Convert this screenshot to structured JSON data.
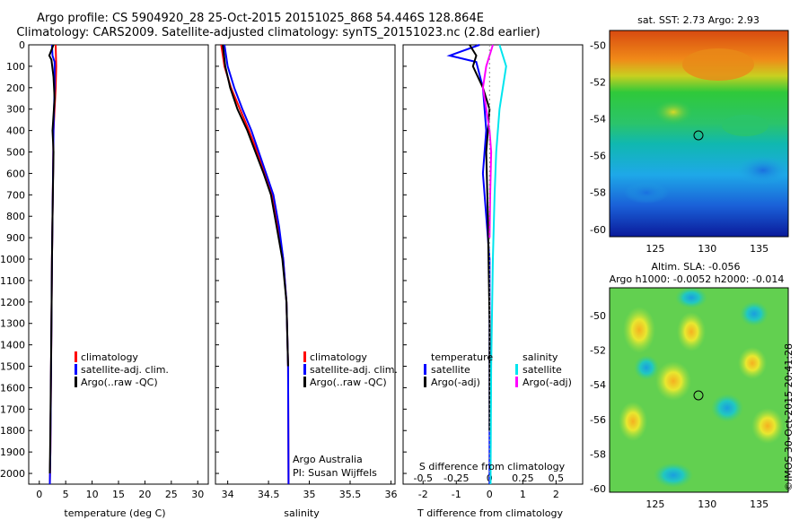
{
  "header": {
    "line1": "Argo profile: CS 5904920_28 25-Oct-2015 20151025_868 54.446S 128.864E",
    "line2": "Climatology: CARS2009. Satellite-adjusted climatology: synTS_20151023.nc (2.8d earlier)"
  },
  "colors": {
    "climatology": "#ff0000",
    "satellite": "#0000ff",
    "argo": "#000000",
    "sat_salinity": "#00e5ee",
    "argo_adj_salinity": "#ff00ff"
  },
  "chart_data": [
    {
      "type": "line",
      "panel": "temperature",
      "xlabel": "temperature (deg C)",
      "xlim": [
        -2,
        32
      ],
      "ylim": [
        2050,
        0
      ],
      "xticks": [
        0,
        5,
        10,
        15,
        20,
        25,
        30
      ],
      "yticks": [
        0,
        100,
        200,
        300,
        400,
        500,
        600,
        700,
        800,
        900,
        1000,
        1100,
        1200,
        1300,
        1400,
        1500,
        1600,
        1700,
        1800,
        1900,
        2000
      ],
      "legend": [
        "climatology",
        "satellite-adj. clim.",
        "Argo(..raw -QC)"
      ],
      "series": [
        {
          "name": "climatology",
          "x": [
            3.1,
            3.2,
            3.1,
            2.9,
            2.7,
            2.6,
            2.5,
            2.4,
            2.3,
            2.2,
            2.1,
            2.0
          ],
          "y": [
            0,
            100,
            200,
            300,
            400,
            600,
            800,
            1000,
            1300,
            1600,
            1900,
            2050
          ]
        },
        {
          "name": "satellite-adj. clim.",
          "x": [
            2.4,
            2.5,
            2.9,
            2.9,
            2.7,
            2.6,
            2.5,
            2.4,
            2.3,
            2.2,
            2.1,
            2.0
          ],
          "y": [
            0,
            50,
            80,
            200,
            400,
            600,
            800,
            1000,
            1300,
            1600,
            1900,
            2050
          ]
        },
        {
          "name": "Argo(..raw -QC)",
          "x": [
            2.7,
            1.9,
            2.3,
            2.7,
            2.9,
            2.5,
            2.7,
            2.5,
            2.4,
            2.3,
            2.1,
            2.0
          ],
          "y": [
            0,
            50,
            70,
            150,
            250,
            400,
            500,
            800,
            1000,
            1300,
            1800,
            2000
          ]
        }
      ]
    },
    {
      "type": "line",
      "panel": "salinity",
      "xlabel": "salinity",
      "xlim": [
        33.85,
        36.05
      ],
      "ylim": [
        2050,
        0
      ],
      "xticks": [
        34,
        34.5,
        35,
        35.5,
        36
      ],
      "legend": [
        "climatology",
        "satellite-adj. clim.",
        "Argo(..raw -QC)"
      ],
      "annotations": [
        "Argo Australia",
        "PI: Susan Wijffels"
      ],
      "series": [
        {
          "name": "climatology",
          "x": [
            33.92,
            33.96,
            34.04,
            34.15,
            34.26,
            34.36,
            34.46,
            34.55,
            34.62,
            34.68,
            34.72,
            34.74,
            34.745
          ],
          "y": [
            0,
            100,
            200,
            300,
            400,
            500,
            600,
            700,
            850,
            1000,
            1200,
            1500,
            2050
          ]
        },
        {
          "name": "satellite-adj. clim.",
          "x": [
            33.96,
            34.0,
            34.08,
            34.18,
            34.29,
            34.38,
            34.47,
            34.56,
            34.63,
            34.68,
            34.72,
            34.74,
            34.745
          ],
          "y": [
            0,
            100,
            200,
            300,
            400,
            500,
            600,
            700,
            850,
            1000,
            1200,
            1500,
            2050
          ]
        },
        {
          "name": "Argo(..raw -QC)",
          "x": [
            33.94,
            33.97,
            34.03,
            34.12,
            34.24,
            34.34,
            34.44,
            34.53,
            34.6,
            34.67,
            34.72,
            34.74
          ],
          "y": [
            0,
            100,
            200,
            300,
            400,
            500,
            600,
            700,
            850,
            1000,
            1200,
            1500
          ]
        }
      ]
    },
    {
      "type": "line",
      "panel": "difference",
      "xlabel": "T difference from climatology",
      "x2label": "S difference from climatology",
      "xlim": [
        -2.6,
        2.8
      ],
      "ylim": [
        2050,
        0
      ],
      "xticks": [
        -2,
        -1,
        0,
        1,
        2
      ],
      "x2ticks": [
        "-0.5",
        "-0.25",
        "0",
        "0.25",
        "0.5"
      ],
      "legend_headers": [
        "temperature",
        "salinity"
      ],
      "legend": [
        "satellite",
        "Argo(-adj)",
        "satellite",
        "Argo(-adj)"
      ],
      "series": [
        {
          "name": "satellite",
          "x": [
            -0.3,
            -1.2,
            -0.4,
            -0.2,
            -0.1,
            -0.2,
            -0.1,
            0,
            0,
            0
          ],
          "y": [
            0,
            50,
            80,
            200,
            400,
            600,
            800,
            1000,
            1500,
            2050
          ]
        },
        {
          "name": "Argo(-adj)",
          "x": [
            -0.6,
            -0.4,
            -0.5,
            -0.2,
            0,
            -0.1,
            -0.05,
            0,
            0
          ],
          "y": [
            0,
            50,
            100,
            200,
            300,
            500,
            800,
            1300,
            1800
          ]
        },
        {
          "name": "satellite",
          "x": [
            0.3,
            0.4,
            0.5,
            0.3,
            0.2,
            0.15,
            0.1,
            0.05,
            0.03
          ],
          "y": [
            0,
            50,
            100,
            300,
            500,
            700,
            1000,
            1500,
            2050
          ]
        },
        {
          "name": "Argo(-adj)",
          "x": [
            0.1,
            -0.1,
            -0.2,
            -0.1,
            0,
            0.05,
            0.02,
            0
          ],
          "y": [
            0,
            100,
            200,
            300,
            400,
            500,
            700,
            900
          ]
        }
      ]
    },
    {
      "type": "heatmap",
      "panel": "sst_map",
      "title": "sat. SST: 2.73  Argo: 2.93",
      "xticks": [
        125,
        130,
        135
      ],
      "yticks": [
        -50,
        -52,
        -54,
        -56,
        -58,
        -60
      ],
      "marker": {
        "lon": 128.864,
        "lat": -54.446
      }
    },
    {
      "type": "heatmap",
      "panel": "sla_map",
      "title": "Altim. SLA: -0.056",
      "subtitle": "Argo h1000: -0.0052  h2000: -0.014",
      "xticks": [
        125,
        130,
        135
      ],
      "yticks": [
        -50,
        -52,
        -54,
        -56,
        -58,
        -60
      ],
      "marker": {
        "lon": 128.864,
        "lat": -54.446
      }
    }
  ],
  "footer": {
    "stamp": "©IMOS 30-Oct-2015 20:41:28"
  }
}
